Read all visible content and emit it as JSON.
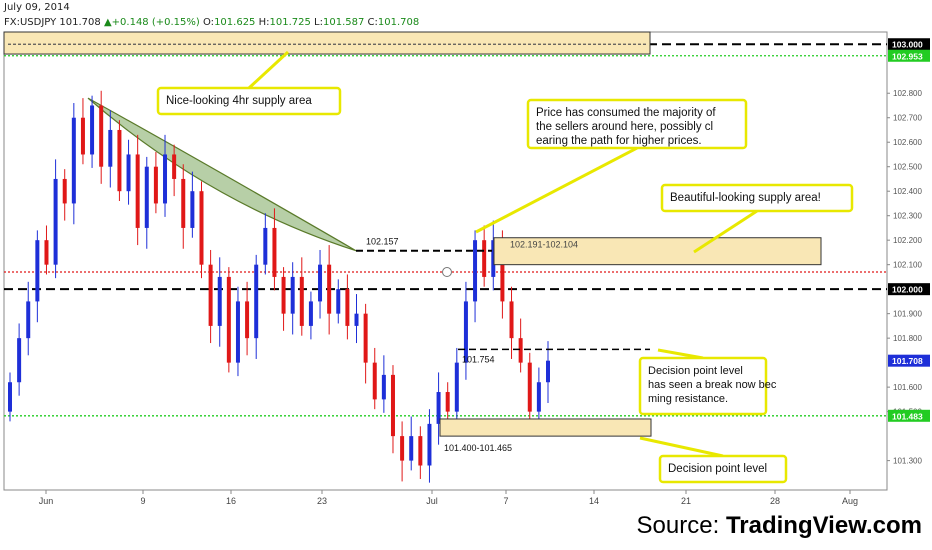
{
  "header": {
    "date": "July 09, 2014",
    "symbol": "FX:USDJPY",
    "last": "101.708",
    "change": "+0.148 (+0.15%)",
    "open_label": "O:",
    "open": "101.625",
    "high_label": "H:",
    "high": "101.725",
    "low_label": "L:",
    "low": "101.587",
    "close_label": "C:",
    "close": "101.708"
  },
  "source": {
    "prefix": "Source: ",
    "brand": "TradingView.com"
  },
  "colors": {
    "up_candle": "#1e2fd8",
    "down_candle": "#e01818",
    "zone_fill": "#f9e7b5",
    "annotation_border": "#e8e800",
    "triangle_fill": "#9fbf8a",
    "green_line": "#22cc22",
    "red_line": "#e01818",
    "price_tag": "#1e2fd8"
  },
  "chart_data": {
    "type": "candlestick",
    "instrument": "FX:USDJPY",
    "ylim": [
      101.18,
      103.05
    ],
    "price_ticks": [
      "102.800",
      "102.700",
      "102.600",
      "102.500",
      "102.400",
      "102.300",
      "102.200",
      "102.100",
      "101.900",
      "101.800",
      "101.600",
      "101.500",
      "101.300"
    ],
    "x_ticks": [
      "Jun",
      "9",
      "16",
      "23",
      "Jul",
      "7",
      "14",
      "21",
      "28",
      "Aug"
    ],
    "levels": [
      {
        "label": "103.000",
        "value": 103.0,
        "style": "black-dashed"
      },
      {
        "label": "102.953",
        "value": 102.953,
        "style": "green-dotted"
      },
      {
        "label": "102.000",
        "value": 102.0,
        "style": "black-dashed"
      },
      {
        "value": 102.07,
        "style": "red-dotted"
      },
      {
        "label": "101.483",
        "value": 101.483,
        "style": "green-dotted"
      },
      {
        "label": "101.708",
        "value": 101.708,
        "style": "last-price"
      }
    ],
    "zone_labels": [
      {
        "text": "102.157"
      },
      {
        "text": "102.191-102.104"
      },
      {
        "text": "101.754"
      },
      {
        "text": "101.400-101.465"
      }
    ],
    "annotations": [
      {
        "text": "Nice-looking 4hr supply area"
      },
      {
        "text": "Price has consumed the majority of the sellers around here, possibly clearing the path for higher prices."
      },
      {
        "text": "Beautiful-looking supply area!"
      },
      {
        "text": "Decision point level has seen a break now becoming resistance."
      },
      {
        "text": "Decision point level"
      }
    ],
    "path": [
      [
        101.5,
        101.62
      ],
      [
        101.62,
        101.8
      ],
      [
        101.8,
        101.95
      ],
      [
        101.95,
        102.2
      ],
      [
        102.2,
        102.1
      ],
      [
        102.1,
        102.45
      ],
      [
        102.45,
        102.35
      ],
      [
        102.35,
        102.7
      ],
      [
        102.7,
        102.55
      ],
      [
        102.55,
        102.75
      ],
      [
        102.75,
        102.5
      ],
      [
        102.5,
        102.65
      ],
      [
        102.65,
        102.4
      ],
      [
        102.4,
        102.55
      ],
      [
        102.55,
        102.25
      ],
      [
        102.25,
        102.5
      ],
      [
        102.5,
        102.35
      ],
      [
        102.35,
        102.55
      ],
      [
        102.55,
        102.45
      ],
      [
        102.45,
        102.25
      ],
      [
        102.25,
        102.4
      ],
      [
        102.4,
        102.1
      ],
      [
        102.1,
        101.85
      ],
      [
        101.85,
        102.05
      ],
      [
        102.05,
        101.7
      ],
      [
        101.7,
        101.95
      ],
      [
        101.95,
        101.8
      ],
      [
        101.8,
        102.1
      ],
      [
        102.1,
        102.25
      ],
      [
        102.25,
        102.05
      ],
      [
        102.05,
        101.9
      ],
      [
        101.9,
        102.05
      ],
      [
        102.05,
        101.85
      ],
      [
        101.85,
        101.95
      ],
      [
        101.95,
        102.1
      ],
      [
        102.1,
        101.9
      ],
      [
        101.9,
        102.0
      ],
      [
        102.0,
        101.85
      ],
      [
        101.85,
        101.9
      ],
      [
        101.9,
        101.7
      ],
      [
        101.7,
        101.55
      ],
      [
        101.55,
        101.65
      ],
      [
        101.65,
        101.4
      ],
      [
        101.4,
        101.3
      ],
      [
        101.3,
        101.4
      ],
      [
        101.4,
        101.28
      ],
      [
        101.28,
        101.45
      ],
      [
        101.45,
        101.58
      ],
      [
        101.58,
        101.5
      ],
      [
        101.5,
        101.7
      ],
      [
        101.7,
        101.95
      ],
      [
        101.95,
        102.2
      ],
      [
        102.2,
        102.05
      ],
      [
        102.05,
        102.2
      ],
      [
        102.2,
        101.95
      ],
      [
        101.95,
        101.8
      ],
      [
        101.8,
        101.7
      ],
      [
        101.7,
        101.5
      ],
      [
        101.5,
        101.62
      ],
      [
        101.62,
        101.708
      ]
    ]
  }
}
